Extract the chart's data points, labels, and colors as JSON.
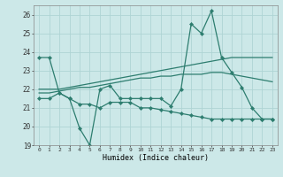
{
  "xlabel": "Humidex (Indice chaleur)",
  "x": [
    0,
    1,
    2,
    3,
    4,
    5,
    6,
    7,
    8,
    9,
    10,
    11,
    12,
    13,
    14,
    15,
    16,
    17,
    18,
    19,
    20,
    21,
    22,
    23
  ],
  "line1": [
    23.7,
    23.7,
    21.8,
    21.5,
    19.9,
    19.0,
    22.0,
    22.2,
    21.5,
    21.5,
    21.5,
    21.5,
    21.5,
    21.1,
    22.0,
    25.5,
    25.0,
    26.2,
    23.7,
    22.9,
    22.1,
    21.0,
    20.4,
    20.4
  ],
  "line2": [
    21.5,
    21.5,
    21.8,
    21.5,
    21.2,
    21.2,
    21.0,
    21.3,
    21.3,
    21.3,
    21.0,
    21.0,
    20.9,
    20.8,
    20.7,
    20.6,
    20.5,
    20.4,
    20.4,
    20.4,
    20.4,
    20.4,
    20.4,
    20.4
  ],
  "line3": [
    22.0,
    22.0,
    22.0,
    22.1,
    22.2,
    22.3,
    22.4,
    22.5,
    22.6,
    22.7,
    22.8,
    22.9,
    23.0,
    23.1,
    23.2,
    23.3,
    23.4,
    23.5,
    23.6,
    23.7,
    23.7,
    23.7,
    23.7,
    23.7
  ],
  "line4": [
    21.8,
    21.8,
    21.9,
    22.0,
    22.1,
    22.1,
    22.2,
    22.3,
    22.4,
    22.5,
    22.6,
    22.6,
    22.7,
    22.7,
    22.8,
    22.8,
    22.8,
    22.9,
    22.9,
    22.8,
    22.7,
    22.6,
    22.5,
    22.4
  ],
  "color": "#2d7d6f",
  "bg_color": "#cce8e8",
  "grid_color": "#afd4d4",
  "ylim": [
    19,
    26.5
  ],
  "xlim": [
    -0.5,
    23.5
  ],
  "yticks": [
    19,
    20,
    21,
    22,
    23,
    24,
    25,
    26
  ],
  "xticks": [
    0,
    1,
    2,
    3,
    4,
    5,
    6,
    7,
    8,
    9,
    10,
    11,
    12,
    13,
    14,
    15,
    16,
    17,
    18,
    19,
    20,
    21,
    22,
    23
  ]
}
